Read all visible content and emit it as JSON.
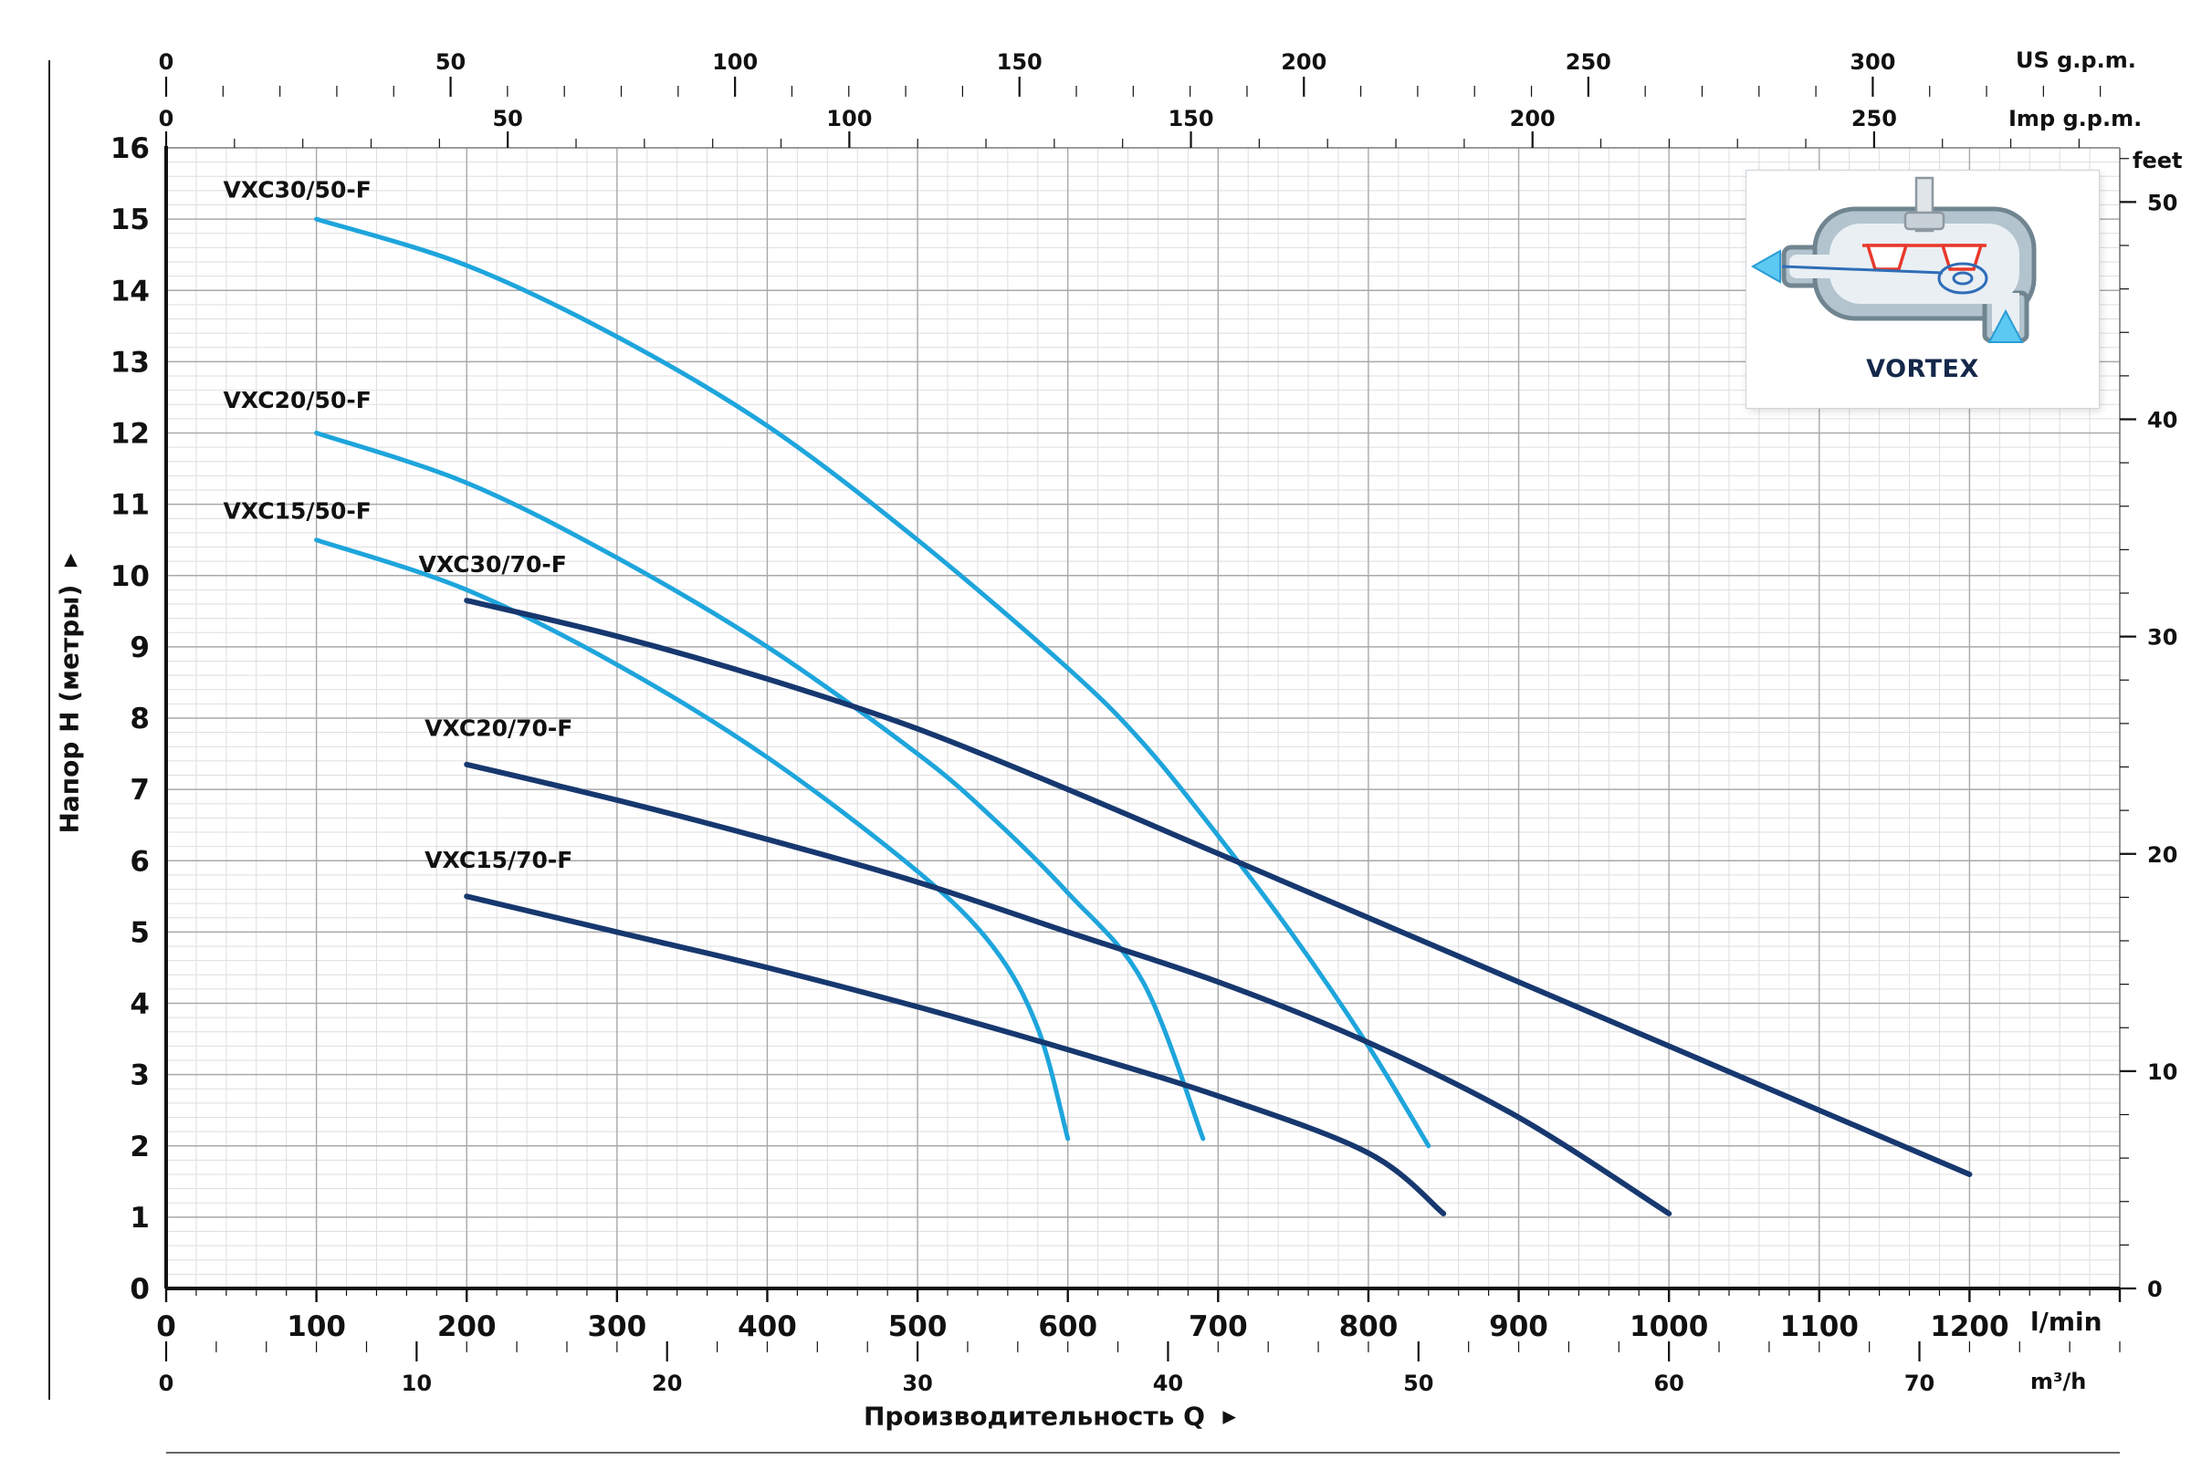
{
  "chart_data": {
    "type": "line",
    "title": "",
    "xlabel": "Производительность Q",
    "xlabel_arrow": "▶",
    "ylabel": "Напор H (метры)",
    "ylabel_arrow": "▶",
    "xlim_lmin": [
      0,
      1300
    ],
    "ylim_m": [
      0,
      16
    ],
    "grid": true,
    "x_minor_step_lmin": 20,
    "y_minor_step_m": 0.2,
    "axes": {
      "meters": {
        "ticks": [
          0,
          1,
          2,
          3,
          4,
          5,
          6,
          7,
          8,
          9,
          10,
          11,
          12,
          13,
          14,
          15,
          16
        ]
      },
      "feet": {
        "unit": "feet",
        "ticks": [
          0,
          10,
          20,
          30,
          40,
          50
        ]
      },
      "lmin": {
        "unit": "l/min",
        "ticks": [
          0,
          100,
          200,
          300,
          400,
          500,
          600,
          700,
          800,
          900,
          1000,
          1100,
          1200
        ]
      },
      "m3h": {
        "unit": "m³/h",
        "ticks": [
          0,
          10,
          20,
          30,
          40,
          50,
          60,
          70
        ]
      },
      "us_gpm": {
        "unit": "US g.p.m.",
        "ticks": [
          0,
          50,
          100,
          150,
          200,
          250,
          300
        ]
      },
      "imp_gpm": {
        "unit": "Imp g.p.m.",
        "ticks": [
          0,
          50,
          100,
          150,
          200,
          250
        ]
      }
    },
    "palette": {
      "light_blue": "#1ea5dc",
      "dark_blue": "#17386f",
      "grid_minor": "#dedede",
      "grid_major": "#a9a9a9",
      "axis": "#111111"
    },
    "series": [
      {
        "name": "VXC30/50-F",
        "color": "#1ea5dc",
        "width": 5,
        "label_pos": [
          38,
          15.3
        ],
        "points": [
          [
            100,
            15.0
          ],
          [
            200,
            14.35
          ],
          [
            300,
            13.35
          ],
          [
            400,
            12.1
          ],
          [
            500,
            10.5
          ],
          [
            600,
            8.7
          ],
          [
            650,
            7.65
          ],
          [
            700,
            6.35
          ],
          [
            750,
            4.95
          ],
          [
            800,
            3.4
          ],
          [
            840,
            2.0
          ]
        ]
      },
      {
        "name": "VXC20/50-F",
        "color": "#1ea5dc",
        "width": 5,
        "label_pos": [
          38,
          12.35
        ],
        "points": [
          [
            100,
            12.0
          ],
          [
            200,
            11.3
          ],
          [
            300,
            10.25
          ],
          [
            400,
            9.0
          ],
          [
            500,
            7.5
          ],
          [
            550,
            6.6
          ],
          [
            600,
            5.55
          ],
          [
            650,
            4.3
          ],
          [
            690,
            2.1
          ]
        ]
      },
      {
        "name": "VXC15/50-F",
        "color": "#1ea5dc",
        "width": 5,
        "label_pos": [
          38,
          10.8
        ],
        "points": [
          [
            100,
            10.5
          ],
          [
            200,
            9.8
          ],
          [
            300,
            8.75
          ],
          [
            400,
            7.45
          ],
          [
            500,
            5.85
          ],
          [
            550,
            4.8
          ],
          [
            580,
            3.65
          ],
          [
            600,
            2.1
          ]
        ]
      },
      {
        "name": "VXC30/70-F",
        "color": "#17386f",
        "width": 6,
        "label_pos": [
          168,
          10.05
        ],
        "points": [
          [
            200,
            9.65
          ],
          [
            300,
            9.15
          ],
          [
            400,
            8.55
          ],
          [
            500,
            7.85
          ],
          [
            600,
            7.0
          ],
          [
            700,
            6.1
          ],
          [
            800,
            5.2
          ],
          [
            900,
            4.3
          ],
          [
            1000,
            3.4
          ],
          [
            1100,
            2.5
          ],
          [
            1200,
            1.6
          ]
        ]
      },
      {
        "name": "VXC20/70-F",
        "color": "#17386f",
        "width": 6,
        "label_pos": [
          172,
          7.75
        ],
        "points": [
          [
            200,
            7.35
          ],
          [
            300,
            6.85
          ],
          [
            400,
            6.3
          ],
          [
            500,
            5.7
          ],
          [
            600,
            5.0
          ],
          [
            700,
            4.3
          ],
          [
            800,
            3.45
          ],
          [
            900,
            2.4
          ],
          [
            1000,
            1.05
          ]
        ]
      },
      {
        "name": "VXC15/70-F",
        "color": "#17386f",
        "width": 6,
        "label_pos": [
          172,
          5.9
        ],
        "points": [
          [
            200,
            5.5
          ],
          [
            300,
            5.0
          ],
          [
            400,
            4.5
          ],
          [
            500,
            3.95
          ],
          [
            600,
            3.35
          ],
          [
            700,
            2.7
          ],
          [
            800,
            1.9
          ],
          [
            850,
            1.05
          ]
        ]
      }
    ]
  },
  "inset": {
    "label": "VORTEX"
  }
}
